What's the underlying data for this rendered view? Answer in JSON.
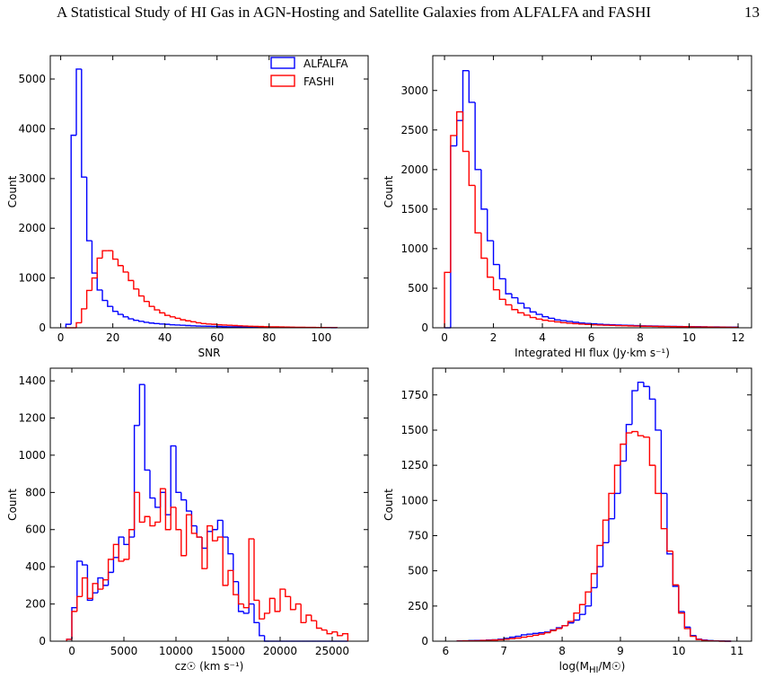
{
  "header": {
    "title": "A Statistical Study of HI Gas in AGN-Hosting and Satellite Galaxies from ALFALFA and FASHI",
    "page_number": "13"
  },
  "chart_data": [
    {
      "type": "histogram",
      "xlabel": "SNR",
      "ylabel": "Count",
      "legend": "upper right",
      "bins": [
        2,
        4,
        6,
        8,
        10,
        12,
        14,
        16,
        18,
        20,
        22,
        24,
        26,
        28,
        30,
        32,
        34,
        36,
        38,
        40,
        42,
        44,
        46,
        48,
        50,
        52,
        54,
        56,
        58,
        60,
        62,
        64,
        66,
        68,
        70,
        72,
        74,
        76,
        78,
        80,
        82,
        84,
        86,
        88,
        90,
        92,
        94,
        96,
        98,
        100,
        102,
        104,
        106
      ],
      "series": [
        {
          "name": "ALFALFA",
          "color": "#0000ff",
          "values": [
            70,
            3870,
            5200,
            3030,
            1750,
            1100,
            760,
            550,
            430,
            330,
            270,
            220,
            180,
            150,
            130,
            110,
            95,
            85,
            75,
            70,
            60,
            55,
            50,
            45,
            40,
            35,
            32,
            30,
            28,
            25,
            22,
            20,
            18,
            16,
            15,
            14,
            12,
            11,
            10,
            9,
            8,
            7,
            6,
            6,
            5,
            5,
            4,
            4,
            3,
            3,
            3,
            2
          ]
        },
        {
          "name": "FASHI",
          "color": "#ff0000",
          "values": [
            0,
            0,
            100,
            380,
            750,
            1000,
            1400,
            1550,
            1550,
            1380,
            1250,
            1120,
            950,
            780,
            640,
            530,
            430,
            360,
            300,
            250,
            220,
            190,
            160,
            140,
            120,
            100,
            85,
            75,
            70,
            60,
            55,
            50,
            45,
            40,
            35,
            30,
            28,
            25,
            22,
            20,
            18,
            16,
            14,
            12,
            10,
            9,
            8,
            7,
            6,
            5,
            4,
            3
          ]
        }
      ],
      "xlim": [
        -4,
        118
      ],
      "ylim": [
        0,
        5470
      ],
      "xticks": [
        0,
        20,
        40,
        60,
        80,
        100
      ],
      "yticks": [
        0,
        1000,
        2000,
        3000,
        4000,
        5000
      ]
    },
    {
      "type": "histogram",
      "xlabel": "Integrated HI flux (Jy·km s⁻¹)",
      "ylabel": "Count",
      "bins": [
        0,
        0.25,
        0.5,
        0.75,
        1,
        1.25,
        1.5,
        1.75,
        2,
        2.25,
        2.5,
        2.75,
        3,
        3.25,
        3.5,
        3.75,
        4,
        4.25,
        4.5,
        4.75,
        5,
        5.25,
        5.5,
        5.75,
        6,
        6.25,
        6.5,
        6.75,
        7,
        7.25,
        7.5,
        7.75,
        8,
        8.25,
        8.5,
        8.75,
        9,
        9.25,
        9.5,
        9.75,
        10,
        10.25,
        10.5,
        10.75,
        11,
        11.25,
        11.5,
        11.75,
        12
      ],
      "series": [
        {
          "color": "#0000ff",
          "values": [
            0,
            2300,
            2620,
            3250,
            2850,
            2000,
            1500,
            1100,
            800,
            620,
            430,
            380,
            310,
            250,
            200,
            170,
            140,
            120,
            100,
            90,
            80,
            70,
            60,
            55,
            50,
            45,
            40,
            38,
            35,
            32,
            30,
            28,
            25,
            23,
            22,
            20,
            18,
            17,
            16,
            15,
            14,
            13,
            12,
            11,
            10,
            9,
            8,
            7
          ]
        },
        {
          "color": "#ff0000",
          "values": [
            700,
            2430,
            2730,
            2230,
            1800,
            1200,
            880,
            640,
            480,
            360,
            290,
            230,
            190,
            160,
            130,
            110,
            95,
            85,
            75,
            65,
            58,
            52,
            46,
            42,
            38,
            35,
            32,
            30,
            28,
            26,
            24,
            22,
            20,
            19,
            18,
            17,
            16,
            15,
            14,
            13,
            12,
            11,
            10,
            9,
            8,
            7,
            6,
            5
          ]
        }
      ],
      "xlim": [
        -0.48,
        12.55
      ],
      "ylim": [
        0,
        3440
      ],
      "xticks": [
        0,
        2,
        4,
        6,
        8,
        10,
        12
      ],
      "yticks": [
        0,
        500,
        1000,
        1500,
        2000,
        2500,
        3000
      ]
    },
    {
      "type": "histogram",
      "xlabel": "cz☉ (km s⁻¹)",
      "ylabel": "Count",
      "bins": [
        -500,
        0,
        500,
        1000,
        1500,
        2000,
        2500,
        3000,
        3500,
        4000,
        4500,
        5000,
        5500,
        6000,
        6500,
        7000,
        7500,
        8000,
        8500,
        9000,
        9500,
        10000,
        10500,
        11000,
        11500,
        12000,
        12500,
        13000,
        13500,
        14000,
        14500,
        15000,
        15500,
        16000,
        16500,
        17000,
        17500,
        18000,
        18500,
        19000,
        19500,
        20000,
        20500,
        21000,
        21500,
        22000,
        22500,
        23000,
        23500,
        24000,
        24500,
        25000,
        25500,
        26000,
        26500
      ],
      "series": [
        {
          "color": "#0000ff",
          "values": [
            10,
            180,
            430,
            410,
            220,
            260,
            340,
            300,
            370,
            450,
            560,
            520,
            560,
            1160,
            1380,
            920,
            770,
            720,
            800,
            680,
            1050,
            800,
            760,
            700,
            620,
            560,
            500,
            590,
            600,
            650,
            560,
            470,
            320,
            160,
            150,
            200,
            100,
            30,
            0,
            0,
            0,
            0,
            0,
            0,
            0,
            0,
            0,
            0,
            0,
            0,
            0,
            0,
            0,
            0
          ]
        },
        {
          "color": "#ff0000",
          "values": [
            10,
            160,
            240,
            340,
            230,
            310,
            280,
            330,
            440,
            520,
            430,
            440,
            600,
            800,
            640,
            670,
            620,
            640,
            820,
            600,
            720,
            600,
            460,
            680,
            580,
            560,
            390,
            620,
            540,
            560,
            300,
            380,
            250,
            200,
            180,
            550,
            220,
            120,
            150,
            230,
            160,
            280,
            240,
            170,
            200,
            100,
            140,
            110,
            70,
            60,
            40,
            50,
            30,
            40
          ]
        }
      ],
      "xlim": [
        -2070,
        28450
      ],
      "ylim": [
        0,
        1468
      ],
      "xticks": [
        0,
        5000,
        10000,
        15000,
        20000,
        25000
      ],
      "yticks": [
        0,
        200,
        400,
        600,
        800,
        1000,
        1200,
        1400
      ]
    },
    {
      "type": "histogram",
      "xlabel": "log(M_HI/M☉)",
      "ylabel": "Count",
      "bins": [
        6.2,
        6.3,
        6.4,
        6.5,
        6.6,
        6.7,
        6.8,
        6.9,
        7,
        7.1,
        7.2,
        7.3,
        7.4,
        7.5,
        7.6,
        7.7,
        7.8,
        7.9,
        8,
        8.1,
        8.2,
        8.3,
        8.4,
        8.5,
        8.6,
        8.7,
        8.8,
        8.9,
        9,
        9.1,
        9.2,
        9.3,
        9.4,
        9.5,
        9.6,
        9.7,
        9.8,
        9.9,
        10,
        10.1,
        10.2,
        10.3,
        10.4,
        10.5,
        10.6,
        10.7,
        10.8,
        10.9
      ],
      "series": [
        {
          "color": "#0000ff",
          "values": [
            2,
            3,
            4,
            5,
            6,
            8,
            10,
            14,
            20,
            28,
            35,
            45,
            50,
            55,
            60,
            65,
            80,
            95,
            110,
            130,
            150,
            190,
            250,
            380,
            530,
            700,
            870,
            1050,
            1280,
            1540,
            1780,
            1840,
            1810,
            1720,
            1500,
            1050,
            620,
            390,
            210,
            100,
            40,
            15,
            8,
            4,
            2,
            1,
            0
          ]
        },
        {
          "color": "#ff0000",
          "values": [
            1,
            2,
            2,
            3,
            5,
            6,
            8,
            10,
            14,
            18,
            22,
            28,
            35,
            42,
            50,
            60,
            75,
            90,
            110,
            140,
            200,
            260,
            350,
            480,
            680,
            860,
            1050,
            1250,
            1400,
            1480,
            1490,
            1460,
            1450,
            1250,
            1050,
            800,
            640,
            400,
            200,
            90,
            35,
            12,
            5,
            2,
            1,
            0,
            0
          ]
        }
      ],
      "xlim": [
        5.78,
        11.25
      ],
      "ylim": [
        0,
        1940
      ],
      "xticks": [
        6,
        7,
        8,
        9,
        10,
        11
      ],
      "yticks": [
        0,
        250,
        500,
        750,
        1000,
        1250,
        1500,
        1750
      ]
    }
  ]
}
